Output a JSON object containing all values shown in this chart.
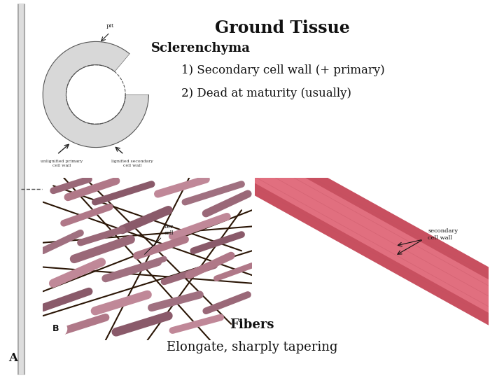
{
  "title": "Ground Tissue",
  "subtitle": "Sclerenchyma",
  "point1": "1) Secondary cell wall (+ primary)",
  "point2": "2) Dead at maturity (usually)",
  "caption1": "Fibers",
  "caption2": "Elongate, sharply tapering",
  "label_A": "A",
  "bg_color": "#ffffff",
  "title_fontsize": 17,
  "subtitle_fontsize": 13,
  "point_fontsize": 12,
  "caption_fontsize": 13,
  "font_color": "#111111",
  "img_left_bg": "#c8aa3a",
  "img_right_bg": "#c8b898",
  "fiber_dark": "#2a1505",
  "fiber_purple": "#8a5a6a",
  "fiber_mauve": "#b07888",
  "fiber_red": "#e06070"
}
